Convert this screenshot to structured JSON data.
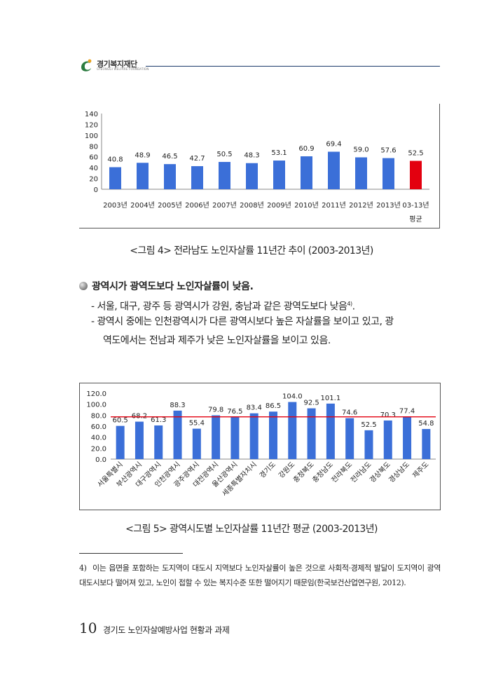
{
  "header": {
    "org_name": "경기복지재단",
    "org_sub": "GYEONGGI WELFARE FOUNDATION"
  },
  "colors": {
    "bar": "#3b6fd8",
    "bar_highlight": "#e3000f",
    "reference_line": "#e3000f",
    "header_line": "#1b3a6b"
  },
  "chart_data": [
    {
      "type": "bar",
      "title": "<그림 4> 전라남도 노인자살률 11년간 추이 (2003-2013년)",
      "categories": [
        "2003년",
        "2004년",
        "2005년",
        "2006년",
        "2007년",
        "2008년",
        "2009년",
        "2010년",
        "2011년",
        "2012년",
        "2013년",
        "03-13년"
      ],
      "category_sublabel": "평균",
      "values": [
        40.8,
        48.9,
        46.5,
        42.7,
        50.5,
        48.3,
        53.1,
        60.9,
        69.4,
        59.0,
        57.6,
        52.5
      ],
      "value_labels": [
        "40.8",
        "48.9",
        "46.5",
        "42.7",
        "50.5",
        "48.3",
        "53.1",
        "60.9",
        "69.4",
        "59.0",
        "57.6",
        "52.5"
      ],
      "highlight_index": 11,
      "ylim": [
        0,
        140
      ],
      "yticks": [
        "0",
        "20",
        "40",
        "60",
        "80",
        "100",
        "120",
        "140"
      ],
      "ytick_values": [
        0,
        20,
        40,
        60,
        80,
        100,
        120,
        140
      ],
      "xlabel": "",
      "ylabel": "",
      "grid": false
    },
    {
      "type": "bar",
      "title": "<그림 5> 광역시도별 노인자살률 11년간 평균 (2003-2013년)",
      "categories": [
        "서울특별시",
        "부산광역시",
        "대구광역시",
        "인천광역시",
        "광주광역시",
        "대전광역시",
        "울산광역시",
        "세종특별자치시",
        "경기도",
        "강원도",
        "충청북도",
        "충청남도",
        "전라북도",
        "전라남도",
        "경상북도",
        "경상남도",
        "제주도"
      ],
      "values": [
        60.5,
        68.2,
        61.3,
        88.3,
        55.4,
        79.8,
        76.5,
        83.4,
        86.5,
        104.0,
        92.5,
        101.1,
        74.6,
        52.5,
        70.3,
        77.4,
        54.8
      ],
      "value_labels": [
        "60.5",
        "68.2",
        "61.3",
        "88.3",
        "55.4",
        "79.8",
        "76.5",
        "83.4",
        "86.5",
        "104.0",
        "92.5",
        "101.1",
        "74.6",
        "52.5",
        "70.3",
        "77.4",
        "54.8"
      ],
      "reference_line": 77.0,
      "ylim": [
        0,
        120
      ],
      "yticks": [
        "0.0",
        "20.0",
        "40.0",
        "60.0",
        "80.0",
        "100.0",
        "120.0"
      ],
      "ytick_values": [
        0,
        20,
        40,
        60,
        80,
        100,
        120
      ],
      "xlabel": "",
      "ylabel": "",
      "grid": false
    }
  ],
  "captions": {
    "fig4": "<그림 4> 전라남도 노인자살률 11년간 추이 (2003-2013년)",
    "fig5": "<그림 5> 광역시도별 노인자살률 11년간 평균 (2003-2013년)"
  },
  "body": {
    "heading": "광역시가 광역도보다 노인자살률이 낮음.",
    "line1": "- 서울, 대구, 광주 등 광역시가 강원, 충남과 같은 광역도보다 낮음",
    "line1_sup": "4)",
    "line1_end": ".",
    "line2": "- 광역시 중에는 인천광역시가 다른 광역시보다 높은 자살률을 보이고 있고, 광",
    "line3": "역도에서는 전남과 제주가 낮은 노인자살률을 보이고 있음."
  },
  "footnote": {
    "num": "4)",
    "text": "이는 읍면을 포함하는 도지역이 대도시 지역보다 노인자살률이 높은 것으로 사회적·경제적 발달이 도지역이 광역대도시보다 떨어져 있고, 노인이 접할 수 있는 복지수준 또한 떨어지기 때문임(한국보건산업연구원, 2012)."
  },
  "footer": {
    "page": "10",
    "title": "경기도 노인자살예방사업 현황과 과제"
  }
}
